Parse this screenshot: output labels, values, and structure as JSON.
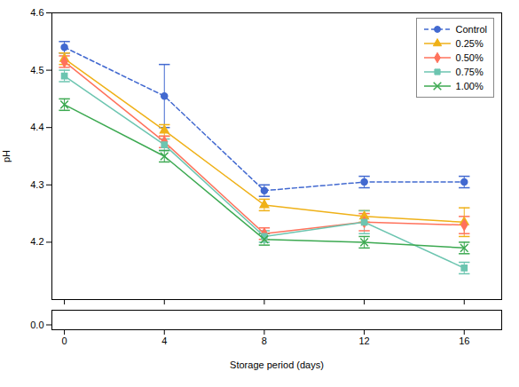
{
  "chart_data": [
    {
      "type": "line",
      "ylabel": "pH",
      "x": [
        0,
        4,
        8,
        12,
        16
      ],
      "series": [
        {
          "name": "Control",
          "values": [
            4.54,
            4.455,
            4.29,
            4.305,
            4.305
          ],
          "yerr": [
            0.01,
            0.055,
            0.01,
            0.01,
            0.01
          ],
          "marker": "circle",
          "line_style": "dashed"
        },
        {
          "name": "0.25%",
          "values": [
            4.52,
            4.395,
            4.265,
            4.245,
            4.235
          ],
          "yerr": [
            0.01,
            0.01,
            0.01,
            0.01,
            0.025
          ],
          "marker": "triangle",
          "line_style": "solid"
        },
        {
          "name": "0.50%",
          "values": [
            4.515,
            4.375,
            4.215,
            4.235,
            4.23
          ],
          "yerr": [
            0.01,
            0.01,
            0.01,
            0.015,
            0.015
          ],
          "marker": "diamond",
          "line_style": "solid"
        },
        {
          "name": "0.75%",
          "values": [
            4.49,
            4.37,
            4.21,
            4.235,
            4.155
          ],
          "yerr": [
            0.01,
            0.01,
            0.01,
            0.02,
            0.01
          ],
          "marker": "square",
          "line_style": "solid"
        },
        {
          "name": "1.00%",
          "values": [
            4.44,
            4.35,
            4.205,
            4.2,
            4.19
          ],
          "yerr": [
            0.01,
            0.01,
            0.01,
            0.01,
            0.01
          ],
          "marker": "times",
          "line_style": "solid"
        }
      ],
      "xlim": [
        -0.5,
        17.5
      ],
      "xticks": [
        0,
        4,
        8,
        12,
        16
      ],
      "ylim": [
        4.1,
        4.6
      ],
      "yticks": [
        4.2,
        4.3,
        4.4,
        4.5,
        4.6
      ],
      "tick_labels": "y",
      "grid": false,
      "legend": "upper right"
    },
    {
      "type": "line",
      "xlabel": "Storage period (days)",
      "x": [
        0,
        4,
        8,
        12,
        16
      ],
      "series": [],
      "xlim": [
        -0.5,
        17.5
      ],
      "xticks": [
        0,
        4,
        8,
        12,
        16
      ],
      "ylim": [
        -0.05,
        0.15
      ],
      "yticks": [
        {
          "value": 0,
          "label": "0.0"
        }
      ],
      "grid": false
    }
  ]
}
